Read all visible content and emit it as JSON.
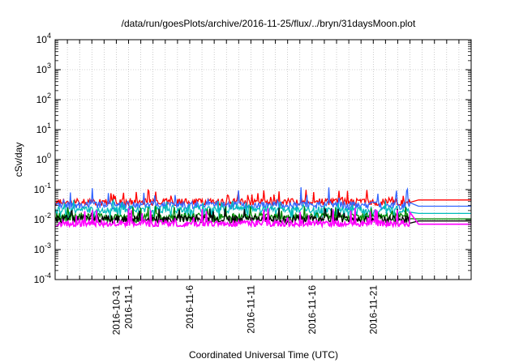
{
  "chart_data": {
    "type": "line",
    "title": "/data/run/goesPlots/archive/2016-11-25/flux/../bryn/31daysMoon.plot",
    "xlabel": "Coordinated Universal Time (UTC)",
    "ylabel": "cSv/day",
    "yscale": "log",
    "ylim": [
      0.0001,
      10000
    ],
    "xlim": [
      "2016-10-26",
      "2016-11-29"
    ],
    "grid": true,
    "y_ticks": [
      {
        "base": "10",
        "exp": "-4",
        "value": 0.0001
      },
      {
        "base": "10",
        "exp": "-3",
        "value": 0.001
      },
      {
        "base": "10",
        "exp": "-2",
        "value": 0.01
      },
      {
        "base": "10",
        "exp": "-1",
        "value": 0.1
      },
      {
        "base": "10",
        "exp": "0",
        "value": 1
      },
      {
        "base": "10",
        "exp": "1",
        "value": 10
      },
      {
        "base": "10",
        "exp": "2",
        "value": 100
      },
      {
        "base": "10",
        "exp": "3",
        "value": 1000
      },
      {
        "base": "10",
        "exp": "4",
        "value": 10000
      }
    ],
    "x_tick_labels": [
      {
        "label": "2016-10-31",
        "date": "2016-10-31"
      },
      {
        "label": "2016-11-1",
        "date": "2016-11-01"
      },
      {
        "label": "2016-11-6",
        "date": "2016-11-06"
      },
      {
        "label": "2016-11-11",
        "date": "2016-11-11"
      },
      {
        "label": "2016-11-16",
        "date": "2016-11-16"
      },
      {
        "label": "2016-11-21",
        "date": "2016-11-21"
      }
    ],
    "series_end": "2016-11-24",
    "series": [
      {
        "color": "#ff0000",
        "typical": 0.04,
        "low": 0.03,
        "high": 0.1,
        "final": 0.045
      },
      {
        "color": "#3366ff",
        "typical": 0.032,
        "low": 0.022,
        "high": 0.12,
        "final": 0.028
      },
      {
        "color": "#00bbbb",
        "typical": 0.022,
        "low": 0.011,
        "high": 0.045,
        "final": 0.016
      },
      {
        "color": "#008800",
        "typical": 0.013,
        "low": 0.008,
        "high": 0.03,
        "final": 0.0105
      },
      {
        "color": "#000000",
        "typical": 0.011,
        "low": 0.0075,
        "high": 0.025,
        "final": 0.009
      },
      {
        "color": "#ff00ff",
        "typical": 0.0075,
        "low": 0.006,
        "high": 0.025,
        "final": 0.007
      }
    ]
  }
}
